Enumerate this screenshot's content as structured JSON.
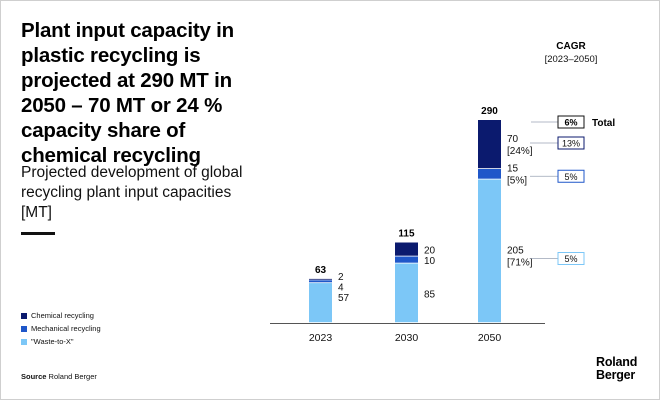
{
  "headline": "Plant input capacity in plastic recycling is projected at 290 MT in 2050 – 70 MT or 24 % capacity share of chemical recycling",
  "subtitle": "Projected development of global recycling plant input capacities [MT]",
  "source_label": "Source",
  "source_text": "Roland Berger",
  "logo": {
    "line1": "Roland",
    "line2": "Berger"
  },
  "colors": {
    "chemical": "#0b1a6e",
    "mechanical": "#1f57c9",
    "waste": "#7cc7f7"
  },
  "legend": [
    {
      "label": "Chemical recycling",
      "color": "#0b1a6e"
    },
    {
      "label": "Mechanical recycling",
      "color": "#1f57c9"
    },
    {
      "label": "\"Waste-to-X\"",
      "color": "#7cc7f7"
    }
  ],
  "chart_data": {
    "type": "bar",
    "stacked": true,
    "unit": "MT",
    "categories": [
      "2023",
      "2030",
      "2050"
    ],
    "series": [
      {
        "name": "\"Waste-to-X\"",
        "key": "waste",
        "values": [
          57,
          85,
          205
        ],
        "labels": [
          "57",
          "85",
          "205"
        ],
        "shares": [
          "",
          "",
          "[71%]"
        ]
      },
      {
        "name": "Mechanical recycling",
        "key": "mechanical",
        "values": [
          4,
          10,
          15
        ],
        "labels": [
          "4",
          "10",
          "15"
        ],
        "shares": [
          "",
          "",
          "[5%]"
        ]
      },
      {
        "name": "Chemical recycling",
        "key": "chemical",
        "values": [
          2,
          20,
          70
        ],
        "labels": [
          "2",
          "20",
          "70"
        ],
        "shares": [
          "",
          "",
          "[24%]"
        ]
      }
    ],
    "totals": [
      "63",
      "115",
      "290"
    ],
    "cagr": {
      "title": "CAGR",
      "period": "[2023–2050]",
      "total_label": "Total",
      "total_value": "6%",
      "chemical": "13%",
      "mechanical": "5%",
      "waste": "5%"
    }
  }
}
